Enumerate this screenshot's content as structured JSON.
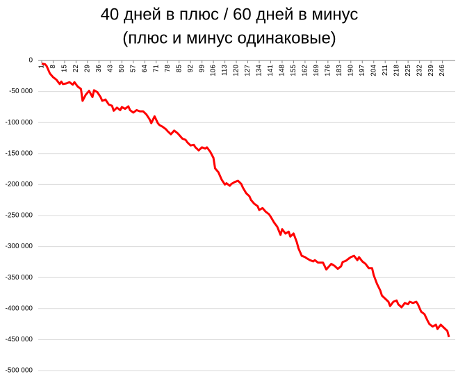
{
  "chart_data": {
    "type": "line",
    "title": "40 дней в плюс / 60 дней в минус",
    "subtitle": "(плюс и минус одинаковые)",
    "x": [
      1,
      3,
      4,
      6,
      8,
      10,
      12,
      13,
      14,
      16,
      18,
      20,
      21,
      23,
      25,
      26,
      28,
      30,
      32,
      33,
      35,
      37,
      38,
      40,
      42,
      44,
      45,
      47,
      49,
      50,
      52,
      54,
      55,
      57,
      59,
      61,
      63,
      65,
      67,
      68,
      70,
      72,
      73,
      75,
      77,
      78,
      80,
      82,
      84,
      85,
      87,
      89,
      90,
      92,
      94,
      95,
      97,
      99,
      101,
      102,
      104,
      106,
      107,
      109,
      111,
      113,
      114,
      116,
      117,
      119,
      121,
      123,
      124,
      126,
      128,
      129,
      131,
      133,
      134,
      136,
      138,
      140,
      141,
      143,
      145,
      147,
      148,
      150,
      152,
      153,
      155,
      157,
      158,
      160,
      162,
      163,
      165,
      167,
      168,
      170,
      172,
      173,
      175,
      177,
      178,
      180,
      182,
      184,
      185,
      187,
      189,
      190,
      192,
      194,
      195,
      197,
      199,
      201,
      203,
      204,
      206,
      208,
      209,
      211,
      213,
      214,
      216,
      218,
      219,
      221,
      223,
      225,
      226,
      228,
      230,
      231,
      233,
      235,
      237,
      238,
      240,
      242,
      243,
      245,
      247,
      249,
      250
    ],
    "series": [
      {
        "color": "#ff0000",
        "values": [
          -5000,
          -6000,
          -9000,
          -21000,
          -27000,
          -31000,
          -38000,
          -34000,
          -38000,
          -37000,
          -35000,
          -39000,
          -35000,
          -42000,
          -46000,
          -65000,
          -55000,
          -49000,
          -59000,
          -48000,
          -51000,
          -59000,
          -65000,
          -63000,
          -71000,
          -73000,
          -81000,
          -76000,
          -80000,
          -75000,
          -78000,
          -74000,
          -80000,
          -84000,
          -80000,
          -82000,
          -82000,
          -87000,
          -95000,
          -101000,
          -90000,
          -101000,
          -104000,
          -107000,
          -111000,
          -114000,
          -119000,
          -113000,
          -117000,
          -120000,
          -126000,
          -128000,
          -132000,
          -137000,
          -136000,
          -140000,
          -145000,
          -140000,
          -142000,
          -140000,
          -147000,
          -157000,
          -174000,
          -180000,
          -192000,
          -200000,
          -198000,
          -202000,
          -199000,
          -196000,
          -194000,
          -199000,
          -205000,
          -214000,
          -219000,
          -225000,
          -231000,
          -235000,
          -241000,
          -238000,
          -244000,
          -248000,
          -252000,
          -261000,
          -268000,
          -281000,
          -272000,
          -279000,
          -276000,
          -284000,
          -279000,
          -293000,
          -303000,
          -315000,
          -317000,
          -319000,
          -322000,
          -324000,
          -322000,
          -326000,
          -326000,
          -326000,
          -337000,
          -331000,
          -328000,
          -331000,
          -336000,
          -332000,
          -325000,
          -323000,
          -319000,
          -317000,
          -315000,
          -322000,
          -317000,
          -324000,
          -328000,
          -335000,
          -335000,
          -346000,
          -360000,
          -371000,
          -379000,
          -384000,
          -389000,
          -396000,
          -389000,
          -387000,
          -393000,
          -398000,
          -391000,
          -393000,
          -389000,
          -391000,
          -389000,
          -393000,
          -405000,
          -409000,
          -420000,
          -425000,
          -429000,
          -426000,
          -433000,
          -426000,
          -431000,
          -436000,
          -446000
        ]
      }
    ],
    "xlim": [
      1,
      250
    ],
    "xticks": [
      1,
      8,
      15,
      22,
      29,
      36,
      43,
      50,
      57,
      64,
      71,
      78,
      85,
      92,
      99,
      106,
      113,
      120,
      127,
      134,
      141,
      148,
      155,
      162,
      169,
      176,
      183,
      190,
      197,
      204,
      211,
      218,
      225,
      232,
      239,
      246
    ],
    "ylim": [
      -500000,
      0
    ],
    "yticks": [
      0,
      {
        "value": -50000,
        "label": "-50 000"
      },
      {
        "value": -100000,
        "label": "-100 000"
      },
      {
        "value": -150000,
        "label": "-150 000"
      },
      {
        "value": -200000,
        "label": "-200 000"
      },
      {
        "value": -250000,
        "label": "-250 000"
      },
      {
        "value": -300000,
        "label": "-300 000"
      },
      {
        "value": -350000,
        "label": "-350 000"
      },
      {
        "value": -400000,
        "label": "-400 000"
      },
      {
        "value": -450000,
        "label": "-450 000"
      },
      {
        "value": -500000,
        "label": "-500 000"
      }
    ],
    "grid": true
  }
}
